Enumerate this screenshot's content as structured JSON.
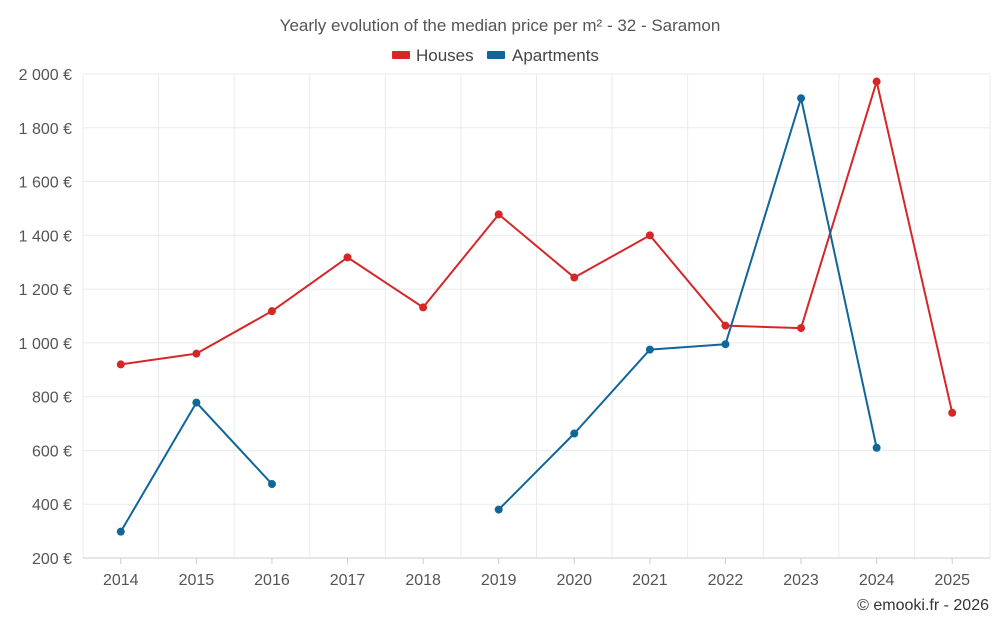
{
  "chart_data": {
    "type": "line",
    "title": "Yearly evolution of the median price per m² - 32 - Saramon",
    "categories": [
      "2014",
      "2015",
      "2016",
      "2017",
      "2018",
      "2019",
      "2020",
      "2021",
      "2022",
      "2023",
      "2024",
      "2025"
    ],
    "ylim": [
      200,
      2000
    ],
    "yticks": [
      200,
      400,
      600,
      800,
      1000,
      1200,
      1400,
      1600,
      1800,
      2000
    ],
    "ytick_labels": [
      "200 €",
      "400 €",
      "600 €",
      "800 €",
      "1 000 €",
      "1 200 €",
      "1 400 €",
      "1 600 €",
      "1 800 €",
      "2 000 €"
    ],
    "grid": true,
    "legend_position": "top-center",
    "series": [
      {
        "name": "Houses",
        "color": "#d62728",
        "values": [
          920,
          960,
          1118,
          1318,
          1132,
          1478,
          1243,
          1400,
          1064,
          1055,
          1972,
          740
        ]
      },
      {
        "name": "Apartments",
        "color": "#0e6699",
        "values": [
          298,
          778,
          475,
          null,
          null,
          380,
          663,
          975,
          995,
          1910,
          610,
          null
        ]
      }
    ]
  },
  "credit": "© emooki.fr - 2026"
}
